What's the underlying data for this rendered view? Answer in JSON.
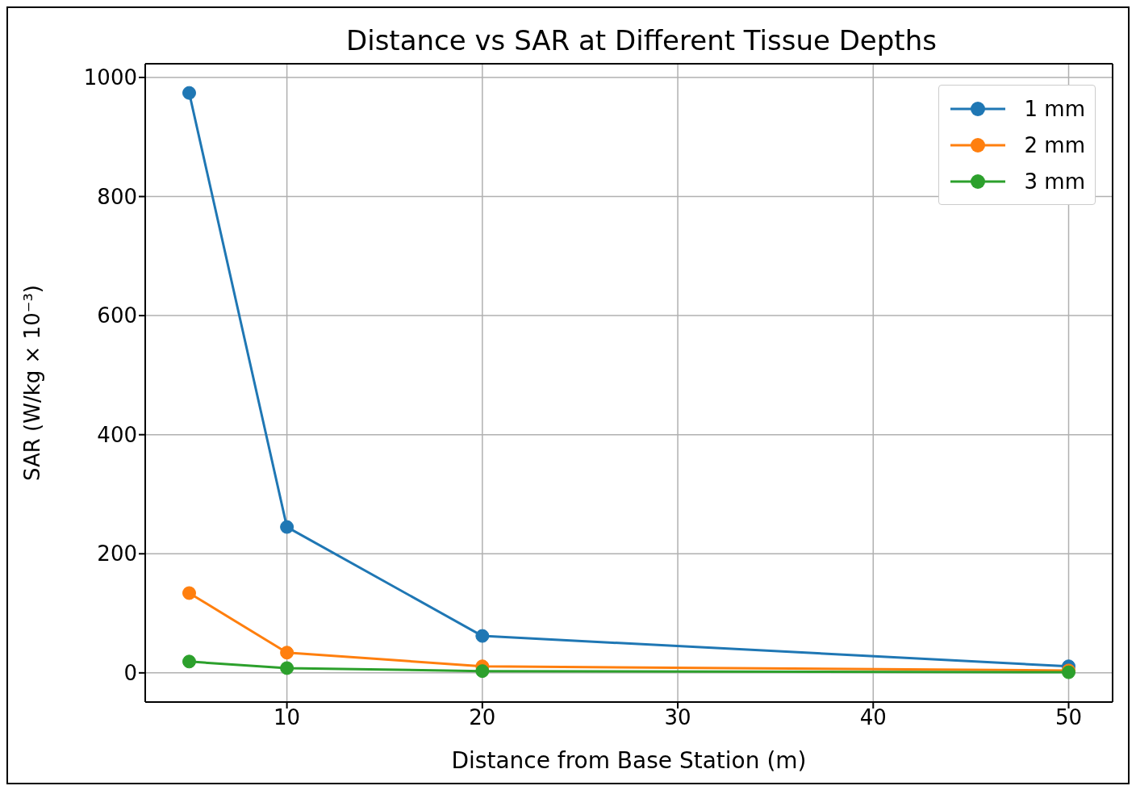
{
  "chart_data": {
    "type": "line",
    "title": "Distance vs SAR at Different Tissue Depths",
    "xlabel": "Distance from Base Station (m)",
    "ylabel": "SAR (W/kg × 10⁻³)",
    "x": [
      5,
      10,
      20,
      50
    ],
    "series": [
      {
        "name": "1 mm",
        "color": "#1f77b4",
        "values": [
          974,
          245,
          62,
          11
        ]
      },
      {
        "name": "2 mm",
        "color": "#ff7f0e",
        "values": [
          134,
          34,
          11,
          4
        ]
      },
      {
        "name": "3 mm",
        "color": "#2ca02c",
        "values": [
          19,
          8,
          3,
          1
        ]
      }
    ],
    "xlim": [
      2.75,
      52.25
    ],
    "xticks": [
      10,
      20,
      30,
      40,
      50
    ],
    "ylim": [
      -49,
      1023
    ],
    "yticks": [
      0,
      200,
      400,
      600,
      800,
      1000
    ],
    "grid": true,
    "legend": "top right",
    "marker": "circle",
    "line_style": "solid"
  }
}
